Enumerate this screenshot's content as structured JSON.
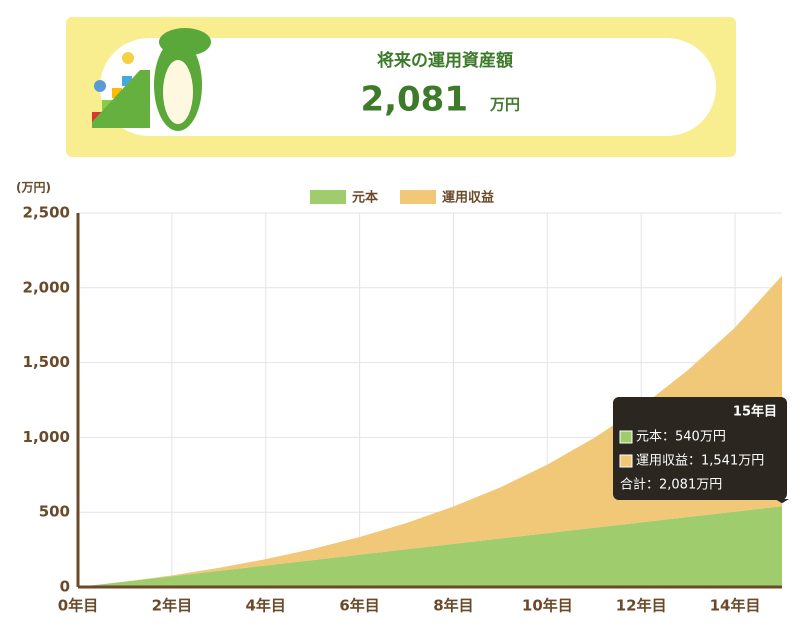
{
  "header": {
    "title": "将来の運用資産額",
    "value": "2,081",
    "unit": "万円"
  },
  "chart_data": {
    "type": "stacked_area",
    "y_label": "(万円)",
    "x": [
      0,
      1,
      2,
      3,
      4,
      5,
      6,
      7,
      8,
      9,
      10,
      11,
      12,
      13,
      14,
      15
    ],
    "series": [
      {
        "name": "元本",
        "color": "#9fcc6c",
        "values": [
          0,
          36,
          72,
          108,
          144,
          180,
          216,
          252,
          288,
          324,
          360,
          396,
          432,
          468,
          504,
          540
        ]
      },
      {
        "name": "運用収益",
        "color": "#f0c878",
        "values": [
          0,
          0,
          6,
          20,
          42,
          74,
          118,
          176,
          250,
          342,
          458,
          601,
          773,
          983,
          1231,
          1541
        ]
      }
    ],
    "xlim": [
      0,
      15
    ],
    "xticks": [
      {
        "value": 0,
        "label": "0年目"
      },
      {
        "value": 2,
        "label": "2年目"
      },
      {
        "value": 4,
        "label": "4年目"
      },
      {
        "value": 6,
        "label": "6年目"
      },
      {
        "value": 8,
        "label": "8年目"
      },
      {
        "value": 10,
        "label": "10年目"
      },
      {
        "value": 12,
        "label": "12年目"
      },
      {
        "value": 14,
        "label": "14年目"
      }
    ],
    "ylim": [
      0,
      2500
    ],
    "yticks": [
      0,
      {
        "value": 500,
        "label": "500"
      },
      {
        "value": 1000,
        "label": "1,000"
      },
      {
        "value": 1500,
        "label": "1,500"
      },
      {
        "value": 2000,
        "label": "2,000"
      },
      {
        "value": 2500,
        "label": "2,500"
      }
    ],
    "grid": true,
    "legend": "top",
    "tooltip": {
      "title": "15年目",
      "lines": [
        "元本：540万円",
        "運用収益：1,541万円",
        "合計：2,081万円"
      ]
    }
  }
}
